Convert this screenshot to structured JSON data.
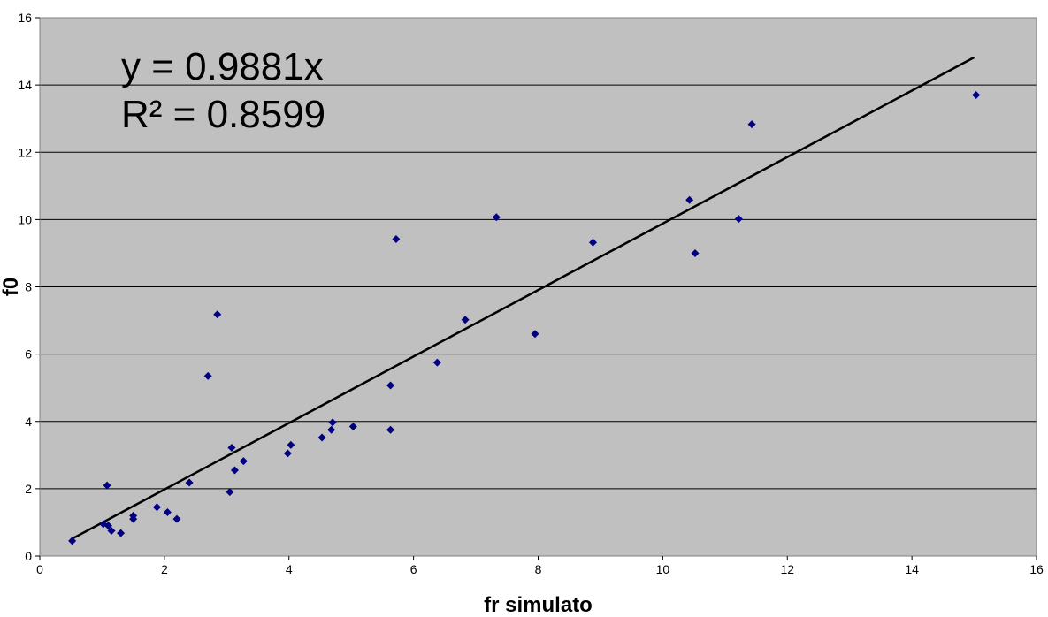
{
  "chart_data": {
    "type": "scatter",
    "title": "",
    "xlabel": "fr simulato",
    "ylabel": "f0",
    "xlim": [
      0,
      16
    ],
    "ylim": [
      0,
      16
    ],
    "xticks": [
      0,
      2,
      4,
      6,
      8,
      10,
      12,
      14,
      16
    ],
    "yticks": [
      0,
      2,
      4,
      6,
      8,
      10,
      12,
      14,
      16
    ],
    "grid": "horizontal",
    "legend": "none",
    "colors": {
      "plot_background": "#c0c0c0",
      "points": "#000080",
      "trendline": "#000000",
      "gridlines": "#000000"
    },
    "annotations": [
      "y = 0.9881x",
      "R² = 0.8599"
    ],
    "trendline": {
      "slope": 0.9881,
      "intercept": 0,
      "x_range": [
        0.5,
        15.0
      ]
    },
    "series": [
      {
        "marker": "diamond",
        "points": [
          [
            0.52,
            0.45
          ],
          [
            1.02,
            0.95
          ],
          [
            1.08,
            2.1
          ],
          [
            1.1,
            0.9
          ],
          [
            1.15,
            0.75
          ],
          [
            1.3,
            0.68
          ],
          [
            1.5,
            1.1
          ],
          [
            1.5,
            1.2
          ],
          [
            1.88,
            1.45
          ],
          [
            2.05,
            1.3
          ],
          [
            2.2,
            1.1
          ],
          [
            2.4,
            2.18
          ],
          [
            2.7,
            5.35
          ],
          [
            2.85,
            7.18
          ],
          [
            3.05,
            1.9
          ],
          [
            3.08,
            3.22
          ],
          [
            3.13,
            2.55
          ],
          [
            3.27,
            2.82
          ],
          [
            3.98,
            3.05
          ],
          [
            4.03,
            3.3
          ],
          [
            4.53,
            3.52
          ],
          [
            4.68,
            3.75
          ],
          [
            4.7,
            3.97
          ],
          [
            5.03,
            3.85
          ],
          [
            5.63,
            5.07
          ],
          [
            5.63,
            3.75
          ],
          [
            5.72,
            9.42
          ],
          [
            6.38,
            5.75
          ],
          [
            6.83,
            7.02
          ],
          [
            7.33,
            10.07
          ],
          [
            7.95,
            6.6
          ],
          [
            8.88,
            9.32
          ],
          [
            10.43,
            10.58
          ],
          [
            10.52,
            9.0
          ],
          [
            11.22,
            10.02
          ],
          [
            11.43,
            12.83
          ],
          [
            15.03,
            13.7
          ]
        ]
      }
    ]
  }
}
